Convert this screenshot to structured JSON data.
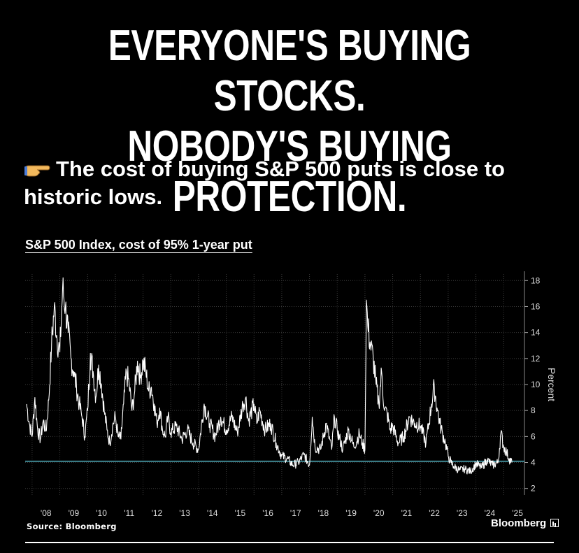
{
  "headline": {
    "line1": "EVERYONE'S BUYING STOCKS.",
    "line2": "NOBODY'S BUYING PROTECTION."
  },
  "subhead": {
    "icon": "pointing-hand-icon",
    "text": "The cost of buying S&P 500 puts is close to historic lows."
  },
  "footer": {
    "source": "Source: Bloomberg",
    "brand": "Bloomberg",
    "brand_icon": "bloomberg-terminal-icon"
  },
  "chart_data": {
    "type": "line",
    "title": "S&P 500 Index, cost of 95% 1-year put",
    "ylabel": "Percent",
    "xlabel": "",
    "ylim": [
      1.5,
      18.5
    ],
    "xlim": [
      2007.75,
      2025.75
    ],
    "y_ticks": [
      2,
      4,
      6,
      8,
      10,
      12,
      14,
      16,
      18
    ],
    "x_ticks": [
      "'08",
      "'09",
      "'10",
      "'11",
      "'12",
      "'13",
      "'14",
      "'15",
      "'16",
      "'17",
      "'18",
      "'19",
      "'20",
      "'21",
      "'22",
      "'23",
      "'24",
      "'25"
    ],
    "grid": true,
    "y_axis_side": "right",
    "reference_line": {
      "value": 4.1,
      "color": "#5ec8d8"
    },
    "line_color": "#ffffff",
    "series": [
      {
        "x": [
          2007.8,
          2007.9,
          2008.0,
          2008.1,
          2008.2,
          2008.3,
          2008.4,
          2008.5,
          2008.6,
          2008.7,
          2008.8,
          2008.9,
          2009.0,
          2009.1,
          2009.2,
          2009.3,
          2009.4,
          2009.5,
          2009.6,
          2009.7,
          2009.8,
          2009.9,
          2010.0,
          2010.1,
          2010.2,
          2010.3,
          2010.4,
          2010.5,
          2010.6,
          2010.7,
          2010.8,
          2010.9,
          2011.0,
          2011.1,
          2011.2,
          2011.3,
          2011.4,
          2011.5,
          2011.6,
          2011.7,
          2011.8,
          2011.9,
          2012.0,
          2012.1,
          2012.2,
          2012.3,
          2012.4,
          2012.5,
          2012.6,
          2012.7,
          2012.8,
          2012.9,
          2013.0,
          2013.2,
          2013.4,
          2013.6,
          2013.8,
          2014.0,
          2014.2,
          2014.4,
          2014.6,
          2014.8,
          2015.0,
          2015.2,
          2015.4,
          2015.6,
          2015.7,
          2015.8,
          2016.0,
          2016.1,
          2016.2,
          2016.4,
          2016.6,
          2016.8,
          2017.0,
          2017.2,
          2017.4,
          2017.6,
          2017.8,
          2018.0,
          2018.1,
          2018.2,
          2018.4,
          2018.6,
          2018.8,
          2018.9,
          2019.0,
          2019.2,
          2019.4,
          2019.6,
          2019.8,
          2019.9,
          2020.0,
          2020.05,
          2020.1,
          2020.2,
          2020.3,
          2020.4,
          2020.5,
          2020.6,
          2020.7,
          2020.8,
          2020.9,
          2021.0,
          2021.2,
          2021.4,
          2021.6,
          2021.8,
          2022.0,
          2022.2,
          2022.4,
          2022.5,
          2022.6,
          2022.7,
          2022.8,
          2022.9,
          2023.0,
          2023.1,
          2023.2,
          2023.4,
          2023.6,
          2023.8,
          2024.0,
          2024.2,
          2024.4,
          2024.6,
          2024.8,
          2024.9,
          2025.0,
          2025.1,
          2025.2,
          2025.3
        ],
        "y": [
          8.5,
          7.0,
          6.0,
          9.0,
          6.5,
          5.8,
          7.2,
          6.4,
          8.8,
          13.0,
          16.0,
          13.5,
          12.5,
          17.4,
          16.0,
          14.0,
          12.0,
          11.0,
          9.8,
          8.5,
          7.5,
          6.0,
          8.0,
          12.4,
          11.0,
          9.0,
          11.5,
          10.0,
          8.0,
          6.5,
          5.5,
          6.8,
          7.5,
          6.0,
          5.8,
          8.5,
          11.0,
          10.0,
          8.0,
          9.5,
          11.8,
          10.5,
          11.8,
          11.0,
          9.5,
          9.8,
          8.5,
          7.0,
          8.2,
          6.5,
          6.0,
          7.5,
          6.3,
          6.8,
          5.8,
          6.5,
          5.5,
          5.0,
          8.5,
          7.0,
          6.0,
          7.5,
          6.5,
          7.5,
          6.3,
          8.5,
          9.0,
          7.2,
          8.5,
          7.0,
          8.0,
          6.5,
          7.0,
          5.5,
          4.5,
          4.3,
          3.8,
          4.0,
          4.6,
          3.8,
          7.5,
          5.2,
          5.0,
          7.0,
          5.0,
          7.5,
          6.5,
          5.0,
          6.5,
          5.2,
          6.2,
          5.5,
          5.0,
          16.5,
          14.5,
          13.0,
          12.0,
          10.0,
          8.5,
          11.0,
          8.0,
          7.8,
          6.5,
          6.8,
          5.5,
          6.0,
          7.5,
          7.0,
          6.8,
          5.5,
          8.5,
          9.8,
          8.2,
          7.0,
          6.2,
          5.5,
          4.5,
          4.0,
          3.7,
          3.4,
          3.5,
          3.3,
          3.9,
          3.6,
          4.2,
          3.8,
          4.0,
          6.3,
          5.2,
          4.8,
          4.3,
          4.0
        ]
      }
    ]
  }
}
